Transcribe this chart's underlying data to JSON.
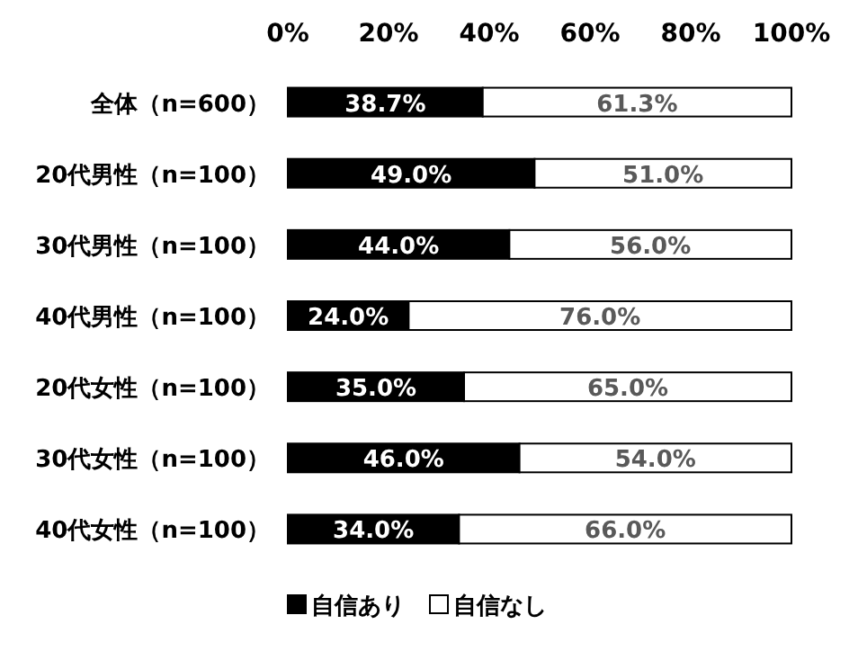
{
  "chart_data": {
    "type": "bar",
    "orientation": "horizontal",
    "stacked": true,
    "grid": false,
    "legend": "bottom",
    "categories": [
      "全体（n=600）",
      "20代男性（n=100）",
      "30代男性（n=100）",
      "40代男性（n=100）",
      "20代女性（n=100）",
      "30代女性（n=100）",
      "40代女性（n=100）"
    ],
    "xlim": [
      0,
      100
    ],
    "xticks": [
      {
        "value": 0,
        "label": "0%"
      },
      {
        "value": 20,
        "label": "20%"
      },
      {
        "value": 40,
        "label": "40%"
      },
      {
        "value": 60,
        "label": "60%"
      },
      {
        "value": 80,
        "label": "80%"
      },
      {
        "value": 100,
        "label": "100%"
      }
    ],
    "series": [
      {
        "name": "自信あり",
        "color": "#000000",
        "values": [
          38.7,
          49.0,
          44.0,
          24.0,
          35.0,
          46.0,
          34.0
        ],
        "value_labels": [
          "38.7%",
          "49.0%",
          "44.0%",
          "24.0%",
          "35.0%",
          "46.0%",
          "34.0%"
        ]
      },
      {
        "name": "自信なし",
        "color": "#ffffff",
        "values": [
          61.3,
          51.0,
          56.0,
          76.0,
          65.0,
          54.0,
          66.0
        ],
        "value_labels": [
          "61.3%",
          "51.0%",
          "56.0%",
          "76.0%",
          "65.0%",
          "54.0%",
          "66.0%"
        ]
      }
    ]
  }
}
